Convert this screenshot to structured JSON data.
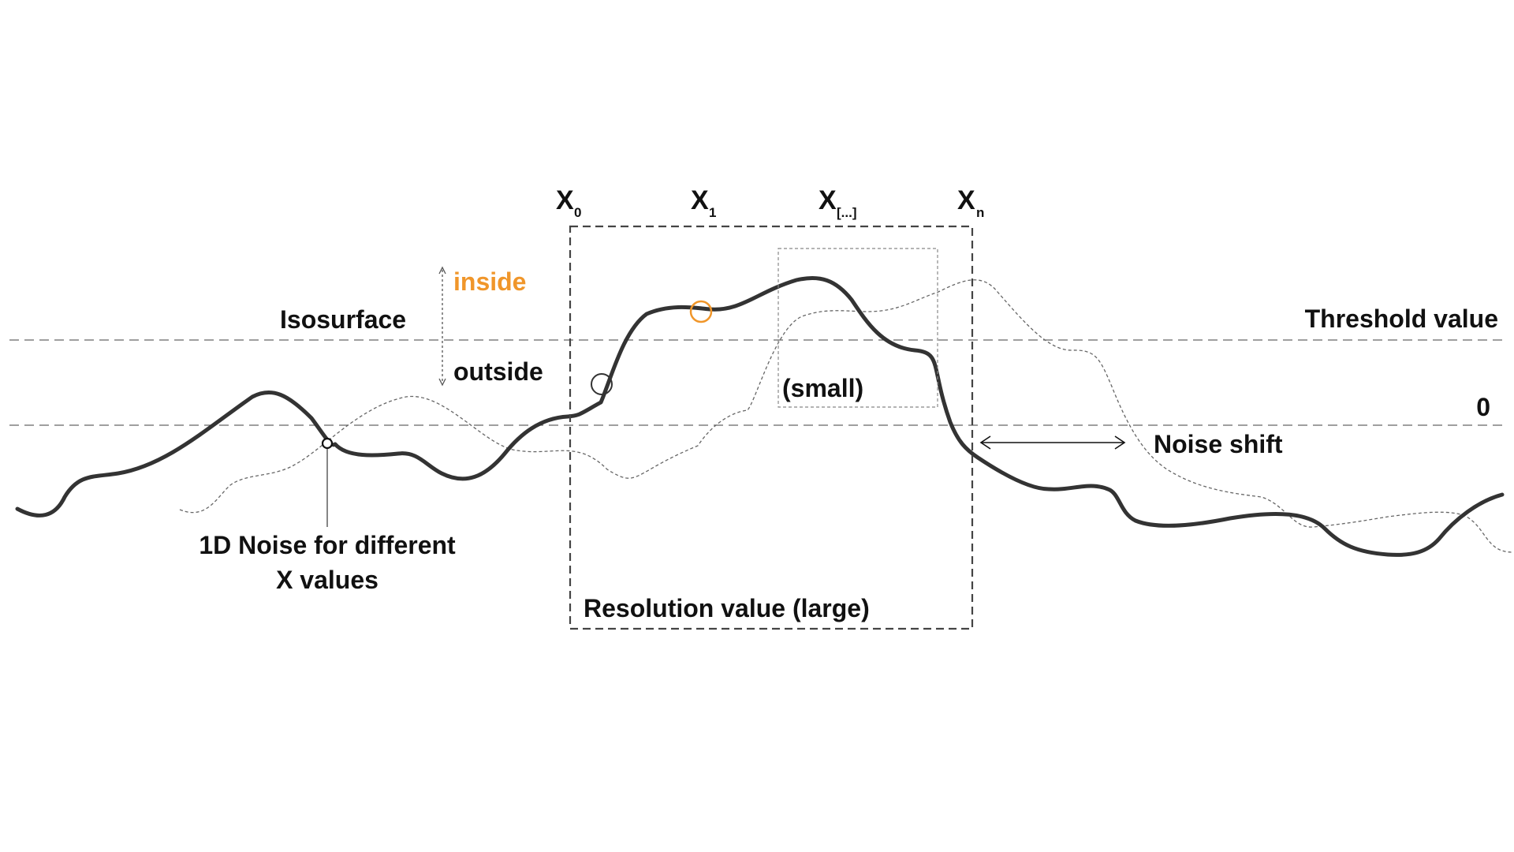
{
  "labels": {
    "isosurface": "Isosurface",
    "inside": "inside",
    "outside": "outside",
    "threshold": "Threshold value",
    "zero": "0",
    "noise_shift": "Noise shift",
    "noise_line1": "1D Noise for different",
    "noise_line2": "X values",
    "small": "(small)",
    "large": "Resolution value (large)"
  },
  "axis_labels": [
    {
      "base": "X",
      "sub": "0"
    },
    {
      "base": "X",
      "sub": "1"
    },
    {
      "base": "X",
      "sub": "[...]"
    },
    {
      "base": "X",
      "sub": "n"
    }
  ],
  "colors": {
    "curve": "#333333",
    "inside": "#f0962a",
    "guide": "#555555",
    "shifted_curve": "#666666"
  }
}
